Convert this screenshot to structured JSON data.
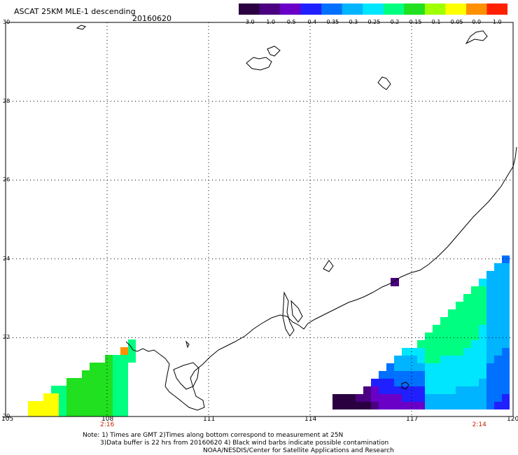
{
  "header": {
    "title": "ASCAT 25KM MLE-1 descending",
    "date": "20160620"
  },
  "colorbar": {
    "labels": [
      "-3.0",
      "-1.0",
      "-0.5",
      "-0.4",
      "-0.35",
      "-0.3",
      "-0.25",
      "-0.2",
      "-0.15",
      "-0.1",
      "-0.05",
      "0.0",
      "1.0"
    ],
    "colors": [
      "#2a0040",
      "#4a0080",
      "#6a00c8",
      "#2020ff",
      "#0070ff",
      "#00b4ff",
      "#00e6ff",
      "#00ff80",
      "#20e020",
      "#a0ff00",
      "#ffff00",
      "#ff9000",
      "#ff2000"
    ]
  },
  "map": {
    "lon_ticks": [
      "105",
      "108",
      "111",
      "114",
      "117",
      "120"
    ],
    "lat_ticks": [
      "30",
      "28",
      "26",
      "24",
      "22",
      "20"
    ],
    "pass_times": [
      {
        "lon": 108,
        "label": "2:16"
      },
      {
        "lon": 119,
        "label": "2:14"
      }
    ],
    "gridline_style": "dotted",
    "lon_range": [
      105,
      120
    ],
    "lat_range": [
      20,
      30
    ]
  },
  "notes": {
    "line1": "Note: 1) Times are GMT  2)Times along bottom correspond to measurement at 25N",
    "line2": "3)Data buffer is 22 hrs from 20160620  4) Black wind barbs indicate possible contamination",
    "line3": "NOAA/NESDIS/Center for Satellite Applications and Research"
  }
}
